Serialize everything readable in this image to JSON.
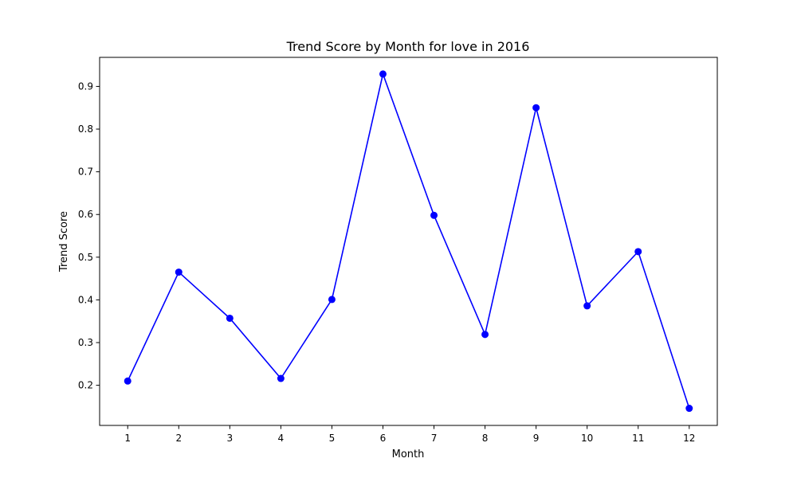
{
  "chart_data": {
    "type": "line",
    "title": "Trend Score by Month for love in 2016",
    "xlabel": "Month",
    "ylabel": "Trend Score",
    "x": [
      1,
      2,
      3,
      4,
      5,
      6,
      7,
      8,
      9,
      10,
      11,
      12
    ],
    "x_tick_labels": [
      "1",
      "2",
      "3",
      "4",
      "5",
      "6",
      "7",
      "8",
      "9",
      "10",
      "11",
      "12"
    ],
    "y_ticks": [
      0.2,
      0.3,
      0.4,
      0.5,
      0.6,
      0.7,
      0.8,
      0.9
    ],
    "y_tick_labels": [
      "0.2",
      "0.3",
      "0.4",
      "0.5",
      "0.6",
      "0.7",
      "0.8",
      "0.9"
    ],
    "xlim": [
      0.45,
      12.55
    ],
    "ylim": [
      0.106,
      0.968
    ],
    "series": [
      {
        "values": [
          0.21,
          0.465,
          0.357,
          0.216,
          0.401,
          0.929,
          0.598,
          0.319,
          0.85,
          0.386,
          0.513,
          0.146
        ],
        "color": "#0000ff",
        "marker": "circle"
      }
    ],
    "grid": false,
    "legend": "none"
  }
}
